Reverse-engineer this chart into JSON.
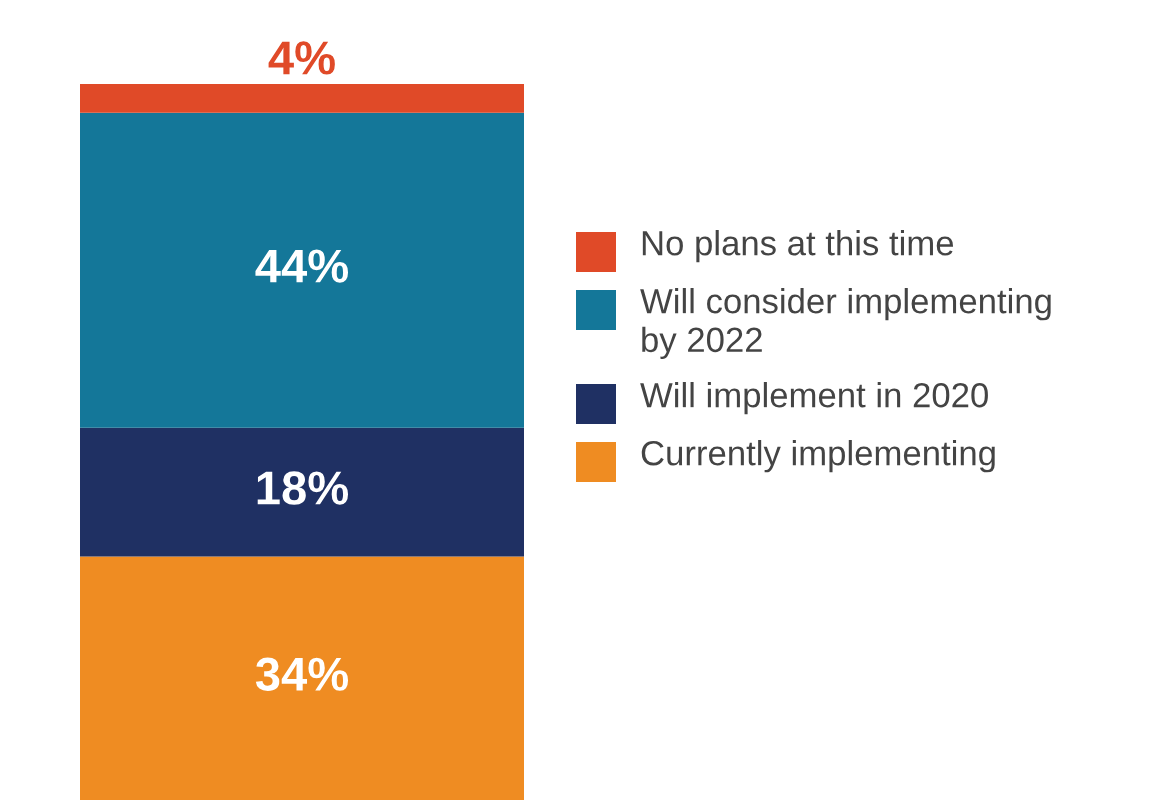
{
  "chart_data": {
    "type": "bar",
    "stacked": true,
    "categories": [
      null
    ],
    "legend": "right",
    "series": [
      {
        "name": "Currently implementing",
        "color": "#ef8c22",
        "values": [
          34
        ],
        "value_labels": [
          "34%"
        ]
      },
      {
        "name": "Will implement in 2020",
        "color": "#1f3063",
        "values": [
          18
        ],
        "value_labels": [
          "18%"
        ]
      },
      {
        "name": "Will consider implementing\nby 2022",
        "color": "#147799",
        "values": [
          44
        ],
        "value_labels": [
          "44%"
        ]
      },
      {
        "name": "No plans at this time",
        "color": "#e04a28",
        "values": [
          4
        ],
        "value_labels": [
          "4%"
        ]
      }
    ]
  }
}
